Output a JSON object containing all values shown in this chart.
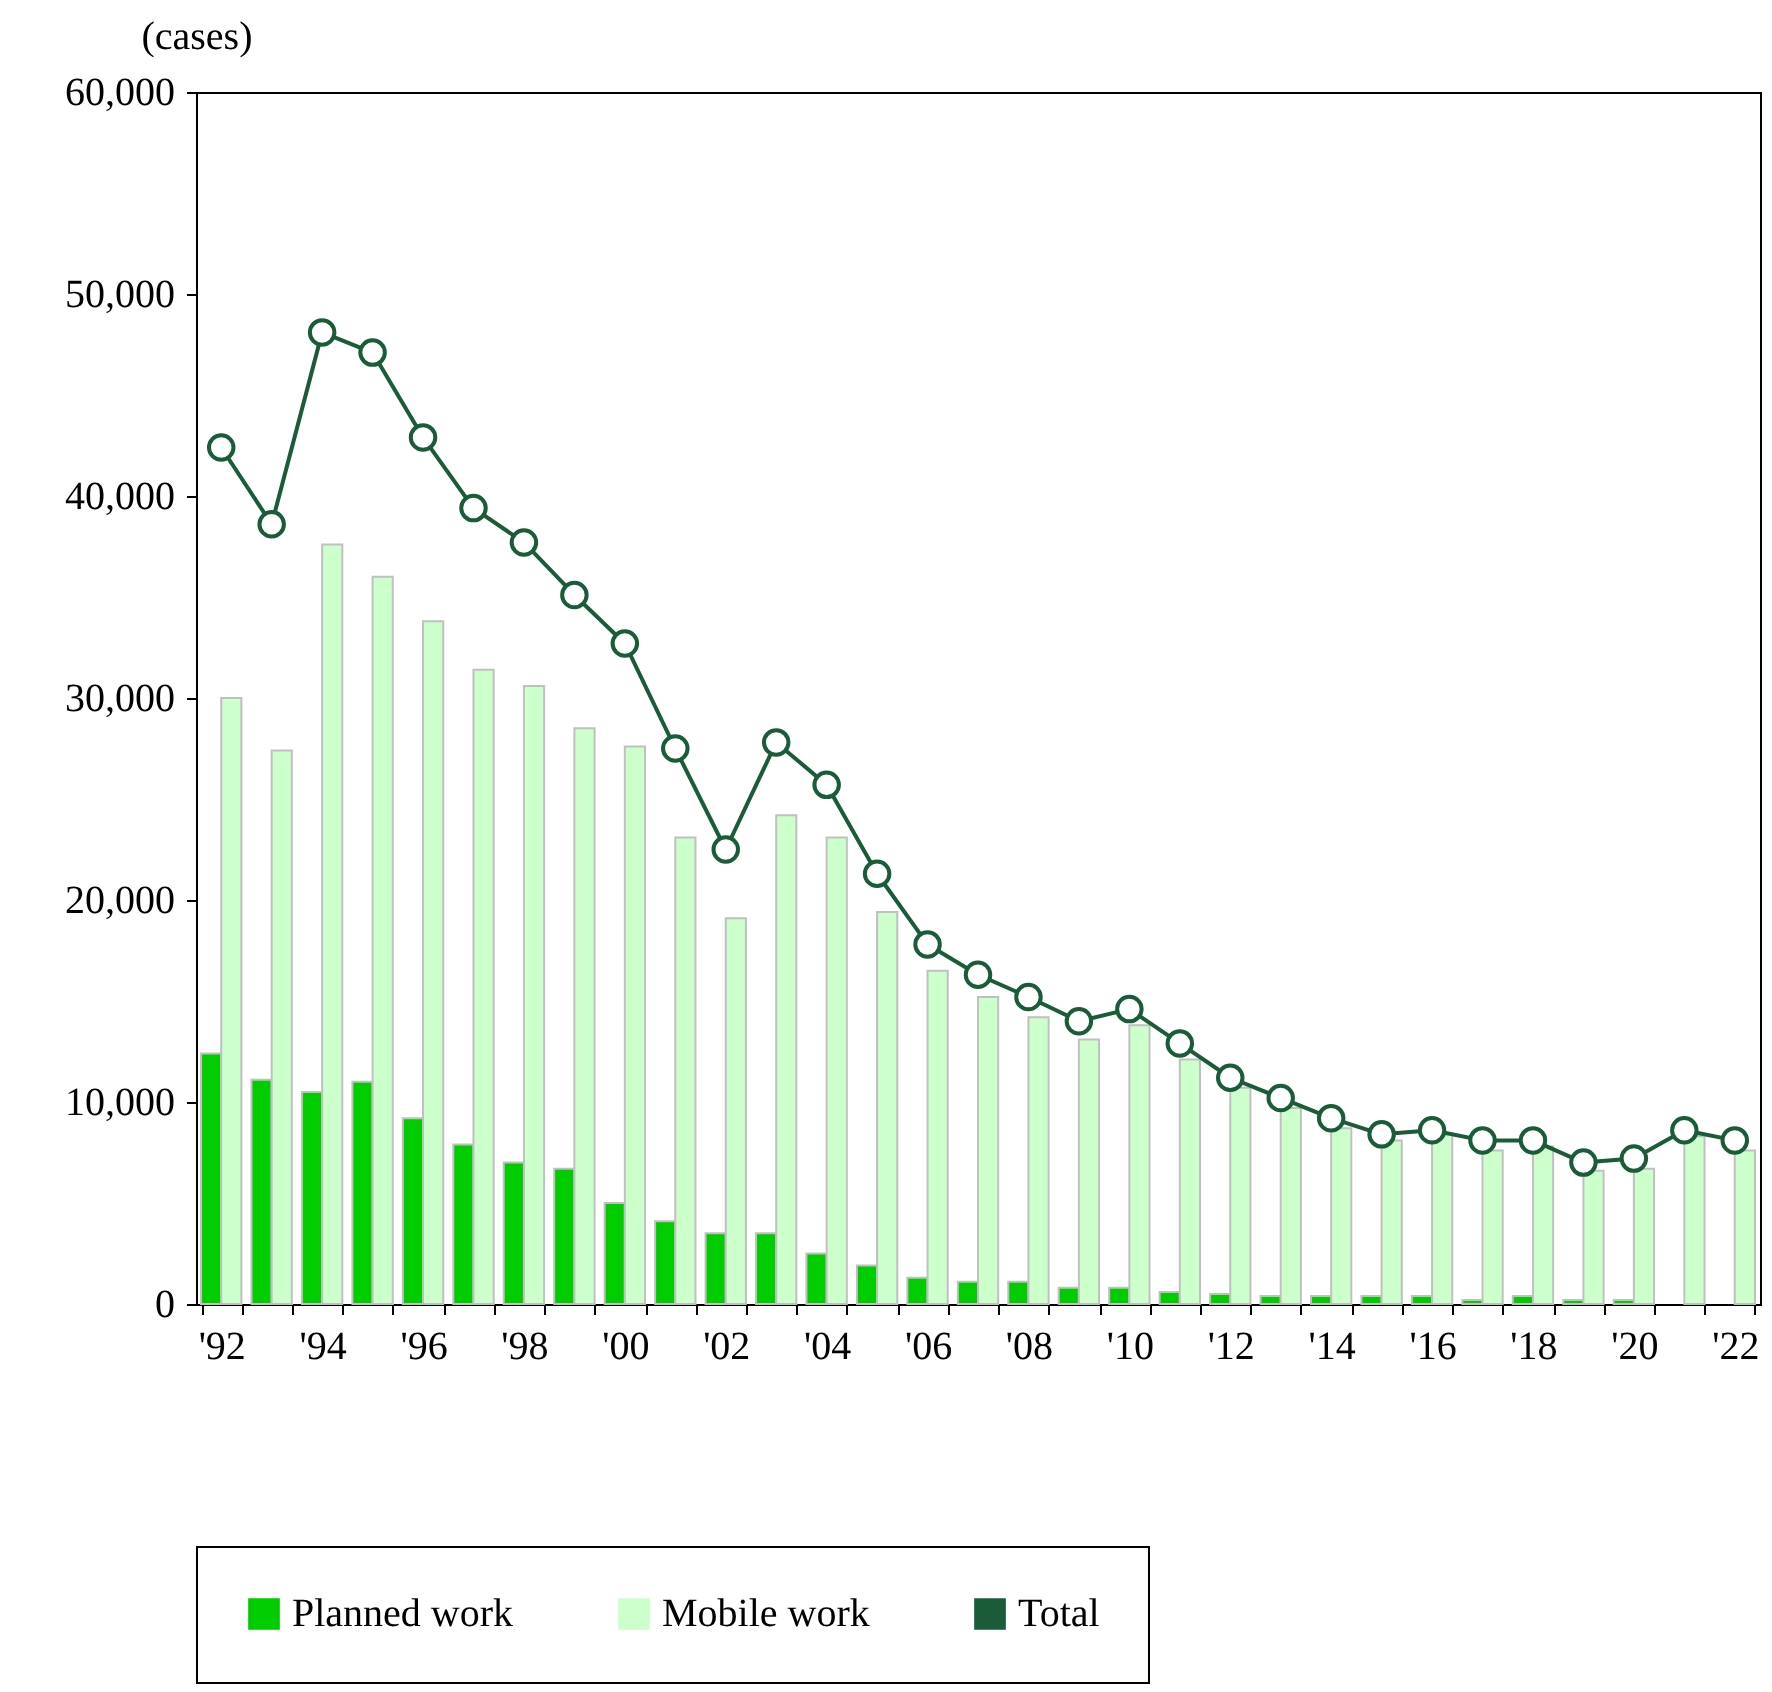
{
  "chart_data": {
    "type": "bar",
    "ylabel": "(cases)",
    "categories": [
      "'92",
      null,
      "'94",
      null,
      "'96",
      null,
      "'98",
      null,
      "'00",
      null,
      "'02",
      null,
      "'04",
      null,
      "'06",
      null,
      "'08",
      null,
      "'10",
      null,
      "'12",
      null,
      "'14",
      null,
      "'16",
      null,
      "'18",
      null,
      "'20",
      null,
      "'22"
    ],
    "series": [
      {
        "name": "Planned work",
        "color": "#00cc00",
        "values": [
          12400,
          11100,
          10500,
          11000,
          9200,
          7900,
          7000,
          6700,
          5000,
          4100,
          3500,
          3500,
          2500,
          1900,
          1300,
          1100,
          1100,
          800,
          800,
          600,
          500,
          400,
          400,
          400,
          400,
          200,
          400,
          200,
          200,
          0,
          0
        ]
      },
      {
        "name": "Mobile work",
        "color": "#ccffcc",
        "values": [
          30000,
          27400,
          37600,
          36000,
          33800,
          31400,
          30600,
          28500,
          27600,
          23100,
          19100,
          24200,
          23100,
          19400,
          16500,
          15200,
          14200,
          13100,
          13800,
          12100,
          10700,
          9700,
          8700,
          8100,
          8400,
          7600,
          7800,
          6600,
          6700,
          8300,
          7600
        ]
      },
      {
        "name": "Total",
        "type": "line",
        "color": "#1a5c38",
        "values": [
          42400,
          38600,
          48100,
          47100,
          42900,
          39400,
          37700,
          35100,
          32700,
          27500,
          22500,
          27800,
          25700,
          21300,
          17800,
          16300,
          15200,
          14000,
          14600,
          12900,
          11200,
          10200,
          9200,
          8400,
          8600,
          8100,
          8100,
          7000,
          7200,
          8600,
          8100
        ]
      }
    ],
    "ylim": [
      0,
      60000
    ],
    "yticks": [
      0,
      {
        "value": 10000,
        "label": "10,000"
      },
      {
        "value": 20000,
        "label": "20,000"
      },
      {
        "value": 30000,
        "label": "30,000"
      },
      {
        "value": 40000,
        "label": "40,000"
      },
      {
        "value": 50000,
        "label": "50,000"
      },
      {
        "value": 60000,
        "label": "60,000"
      }
    ],
    "marker": "circle",
    "legend": "bottom"
  }
}
